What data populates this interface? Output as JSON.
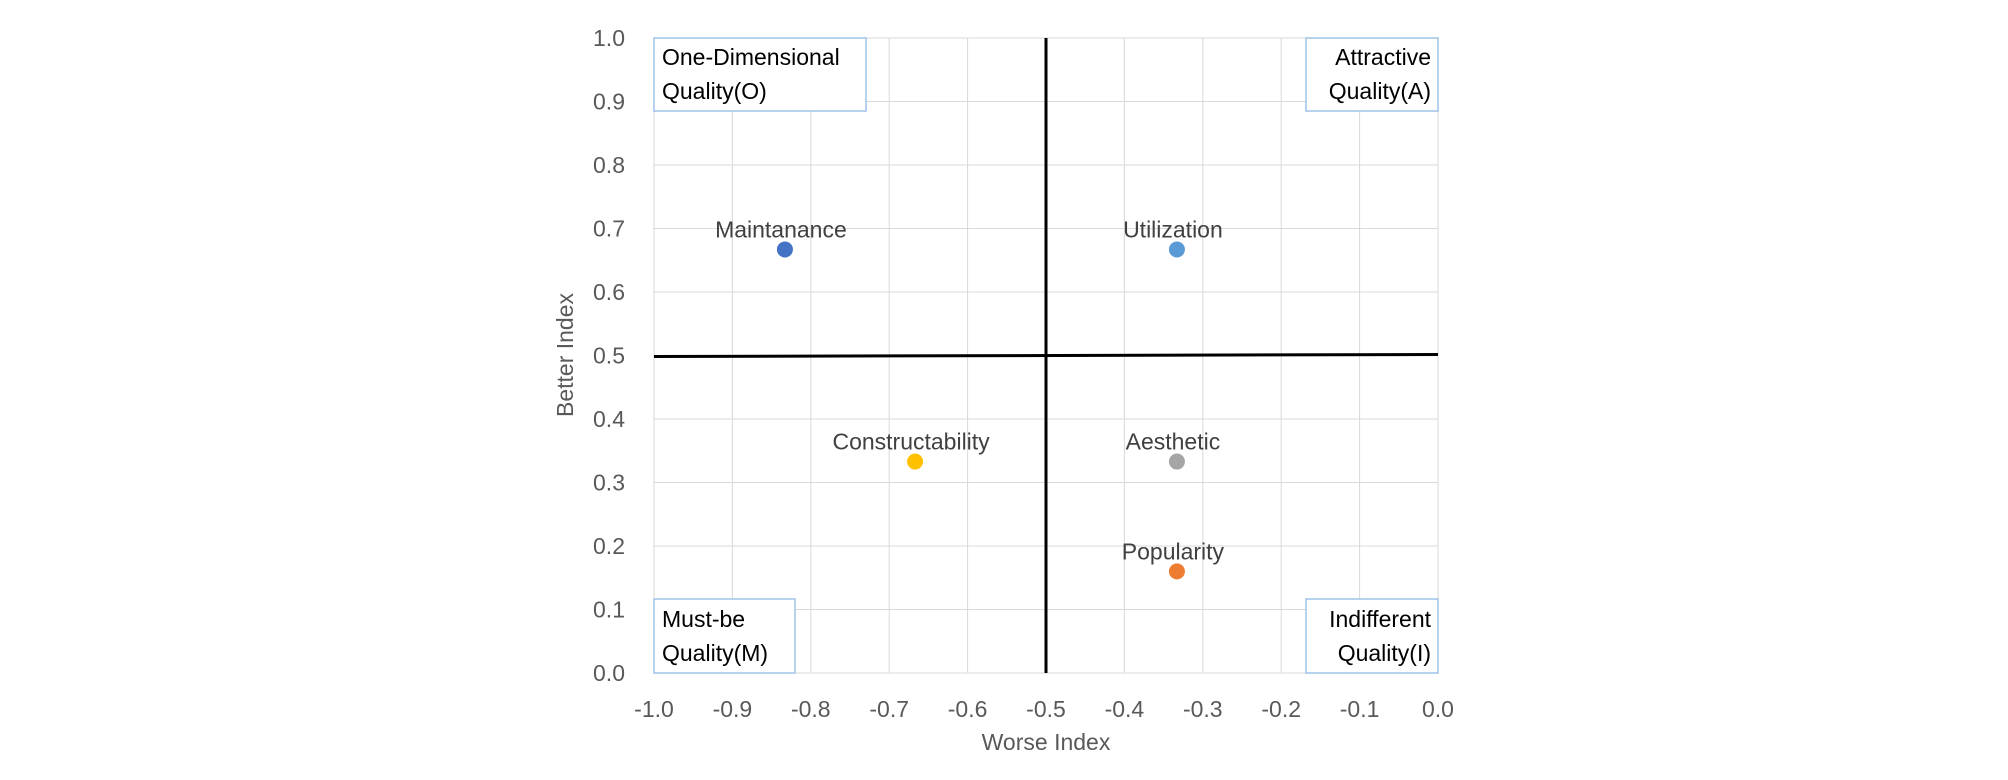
{
  "chart_data": {
    "type": "scatter",
    "title": "",
    "xlabel": "Worse Index",
    "ylabel": "Better Index",
    "xlim": [
      -1.0,
      0.0
    ],
    "ylim": [
      0.0,
      1.0
    ],
    "xticks": [
      "-1.0",
      "-0.9",
      "-0.8",
      "-0.7",
      "-0.6",
      "-0.5",
      "-0.4",
      "-0.3",
      "-0.2",
      "-0.1",
      "0.0"
    ],
    "yticks": [
      "0.0",
      "0.1",
      "0.2",
      "0.3",
      "0.4",
      "0.5",
      "0.6",
      "0.7",
      "0.8",
      "0.9",
      "1.0"
    ],
    "grid": true,
    "divider": {
      "x": -0.5,
      "y": 0.5
    },
    "points": [
      {
        "name": "Maintanance",
        "x": -0.833,
        "y": 0.667,
        "color": "#4472c4"
      },
      {
        "name": "Utilization",
        "x": -0.333,
        "y": 0.667,
        "color": "#5b9bd5"
      },
      {
        "name": "Constructability",
        "x": -0.667,
        "y": 0.333,
        "color": "#ffc000"
      },
      {
        "name": "Aesthetic",
        "x": -0.333,
        "y": 0.333,
        "color": "#a5a5a5"
      },
      {
        "name": "Popularity",
        "x": -0.333,
        "y": 0.16,
        "color": "#ed7d31"
      }
    ],
    "quadrants": {
      "top_left": [
        "One-Dimensional",
        "Quality(O)"
      ],
      "top_right": [
        "Attractive",
        "Quality(A)"
      ],
      "bottom_left": [
        "Must-be",
        "Quality(M)"
      ],
      "bottom_right": [
        "Indifferent",
        "Quality(I)"
      ]
    }
  }
}
